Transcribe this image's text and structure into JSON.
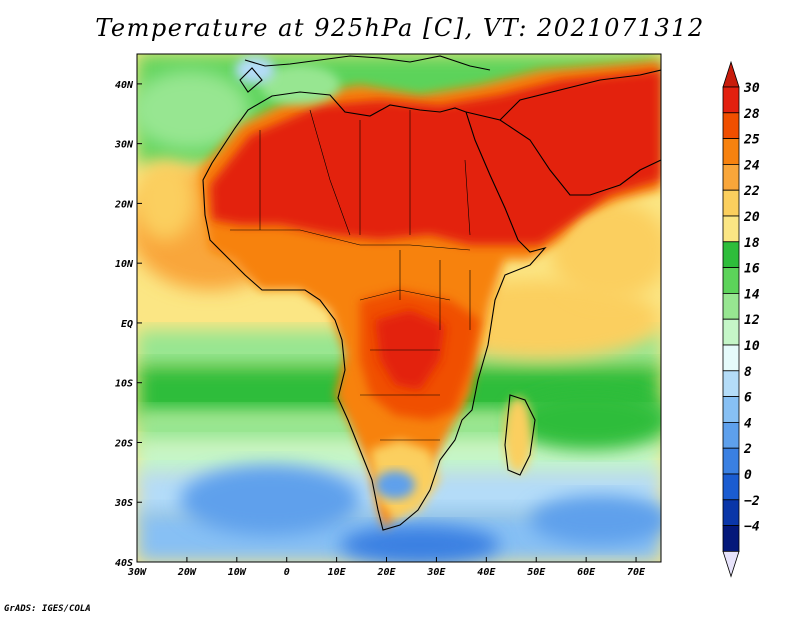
{
  "title": "Temperature at 925hPa [C], VT: 2021071312",
  "credit": "GrADS: IGES/COLA",
  "map": {
    "variable": "Temperature at 925hPa",
    "units": "C",
    "valid_time": "2021071312",
    "lon_range": [
      -30,
      75
    ],
    "lat_range": [
      -40,
      45
    ],
    "lon_ticks": [
      {
        "value": -30,
        "label": "30W"
      },
      {
        "value": -20,
        "label": "20W"
      },
      {
        "value": -10,
        "label": "10W"
      },
      {
        "value": 0,
        "label": "0"
      },
      {
        "value": 10,
        "label": "10E"
      },
      {
        "value": 20,
        "label": "20E"
      },
      {
        "value": 30,
        "label": "30E"
      },
      {
        "value": 40,
        "label": "40E"
      },
      {
        "value": 50,
        "label": "50E"
      },
      {
        "value": 60,
        "label": "60E"
      },
      {
        "value": 70,
        "label": "70E"
      }
    ],
    "lat_ticks": [
      {
        "value": 40,
        "label": "40N"
      },
      {
        "value": 30,
        "label": "30N"
      },
      {
        "value": 20,
        "label": "20N"
      },
      {
        "value": 10,
        "label": "10N"
      },
      {
        "value": 0,
        "label": "EQ"
      },
      {
        "value": -10,
        "label": "10S"
      },
      {
        "value": -20,
        "label": "20S"
      },
      {
        "value": -30,
        "label": "30S"
      },
      {
        "value": -40,
        "label": "40S"
      }
    ]
  },
  "colorbar": {
    "levels": [
      "30",
      "28",
      "25",
      "24",
      "22",
      "20",
      "18",
      "16",
      "14",
      "12",
      "10",
      "8",
      "6",
      "4",
      "2",
      "0",
      "-2",
      "-4"
    ],
    "colors": [
      "#e3200f",
      "#f04f00",
      "#f7820f",
      "#f9a63a",
      "#fbcf5e",
      "#fbe684",
      "#2ebd3b",
      "#5cd35a",
      "#97e691",
      "#c5f6c8",
      "#e6fbfb",
      "#b4dcf8",
      "#87c0f4",
      "#5ea0ec",
      "#3a80e2",
      "#1a5cd1",
      "#0a36a8",
      "#04187a"
    ],
    "top_color": "#c81c0c",
    "bottom_color": "#e7e3fb"
  }
}
